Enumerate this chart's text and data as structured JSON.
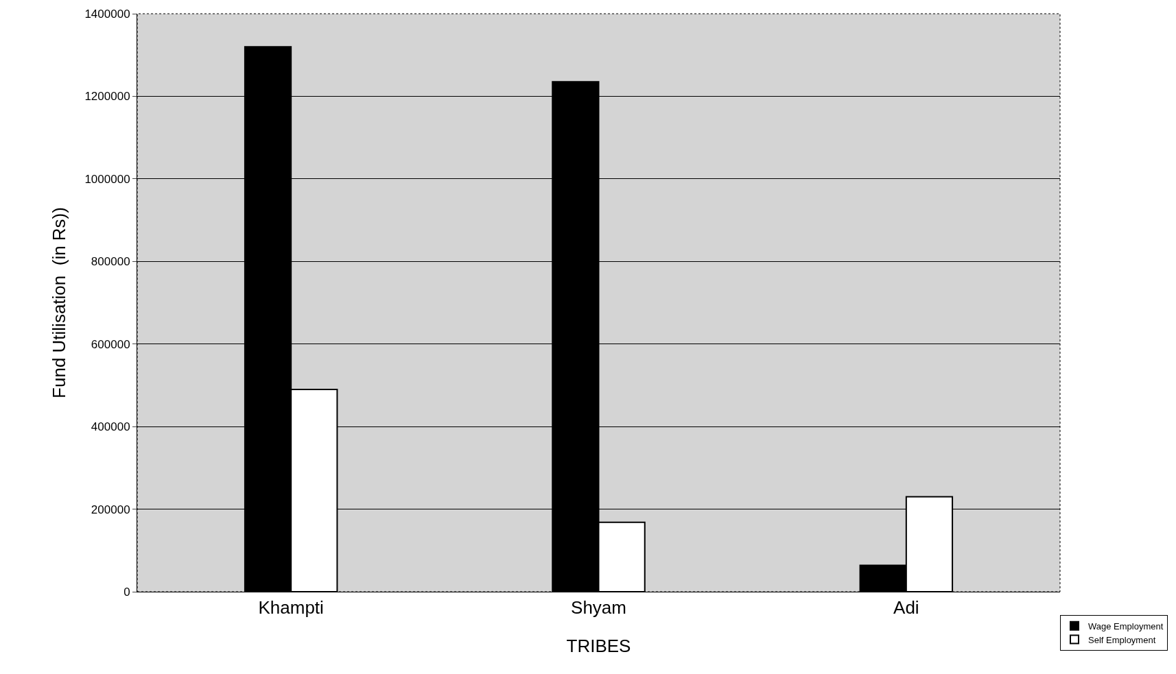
{
  "chart_data": {
    "type": "bar",
    "xlabel": "TRIBES",
    "ylabel": "Fund Utilisation  (in Rs))",
    "categories": [
      "Khampti",
      "Shyam",
      "Adi"
    ],
    "series": [
      {
        "name": "Wage Employment",
        "color": "#000000",
        "values": [
          1320000,
          1235000,
          64000
        ]
      },
      {
        "name": "Self Employment",
        "color": "#ffffff",
        "values": [
          490000,
          168000,
          230000
        ]
      }
    ],
    "ylim": [
      0,
      1400000
    ],
    "yticks": [
      0,
      200000,
      400000,
      600000,
      800000,
      1000000,
      1200000,
      1400000
    ],
    "grid": "y",
    "legend": "bottom right"
  }
}
